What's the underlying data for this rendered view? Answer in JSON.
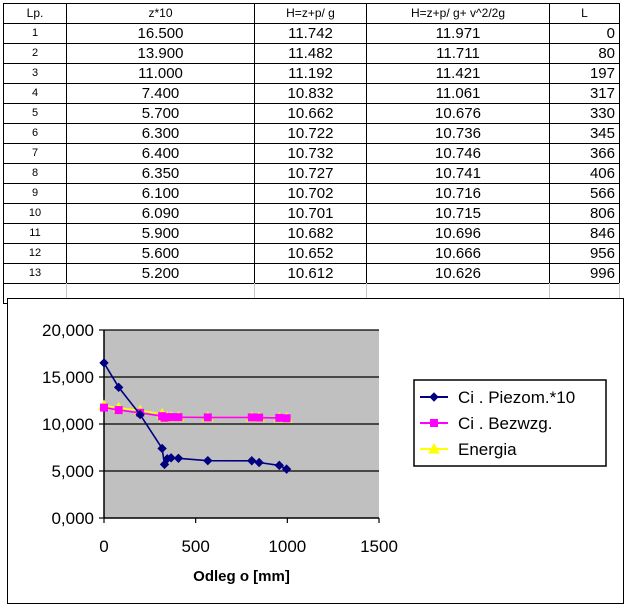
{
  "table": {
    "headers": [
      "Lp.",
      "z*10",
      "H=z+p/   g",
      "H=z+p/   g+   v^2/2g",
      "L"
    ],
    "rows": [
      [
        "1",
        "16.500",
        "11.742",
        "11.971",
        "0"
      ],
      [
        "2",
        "13.900",
        "11.482",
        "11.711",
        "80"
      ],
      [
        "3",
        "11.000",
        "11.192",
        "11.421",
        "197"
      ],
      [
        "4",
        "7.400",
        "10.832",
        "11.061",
        "317"
      ],
      [
        "5",
        "5.700",
        "10.662",
        "10.676",
        "330"
      ],
      [
        "6",
        "6.300",
        "10.722",
        "10.736",
        "345"
      ],
      [
        "7",
        "6.400",
        "10.732",
        "10.746",
        "366"
      ],
      [
        "8",
        "6.350",
        "10.727",
        "10.741",
        "406"
      ],
      [
        "9",
        "6.100",
        "10.702",
        "10.716",
        "566"
      ],
      [
        "10",
        "6.090",
        "10.701",
        "10.715",
        "806"
      ],
      [
        "11",
        "5.900",
        "10.682",
        "10.696",
        "846"
      ],
      [
        "12",
        "5.600",
        "10.652",
        "10.666",
        "956"
      ],
      [
        "13",
        "5.200",
        "10.612",
        "10.626",
        "996"
      ]
    ]
  },
  "chart_data": {
    "type": "line",
    "title": "",
    "xlabel": "Odleg o     [mm]",
    "ylabel": "",
    "xlim": [
      0,
      1500
    ],
    "ylim": [
      0,
      20000
    ],
    "x_ticks": [
      "0",
      "500",
      "1000",
      "1500"
    ],
    "y_ticks": [
      "0,000",
      "5,000",
      "10,000",
      "15,000",
      "20,000"
    ],
    "grid": "horizontal",
    "plot_background": "#c0c0c0",
    "legend_position": "right",
    "x": [
      0,
      80,
      197,
      317,
      330,
      345,
      366,
      406,
      566,
      806,
      846,
      956,
      996
    ],
    "series": [
      {
        "name": "Ci   . Piezom.*10",
        "color": "#000080",
        "marker": "diamond",
        "values": [
          16500,
          13900,
          11000,
          7400,
          5700,
          6300,
          6400,
          6350,
          6100,
          6090,
          5900,
          5600,
          5200
        ]
      },
      {
        "name": "Ci   . Bezwzg.",
        "color": "#ff00ff",
        "marker": "square",
        "values": [
          11742,
          11482,
          11192,
          10832,
          10662,
          10722,
          10732,
          10727,
          10702,
          10701,
          10682,
          10652,
          10612
        ]
      },
      {
        "name": "Energia",
        "color": "#ffff00",
        "marker": "triangle",
        "values": [
          11971,
          11711,
          11421,
          11061,
          10676,
          10736,
          10746,
          10741,
          10716,
          10715,
          10696,
          10666,
          10626
        ]
      }
    ]
  }
}
